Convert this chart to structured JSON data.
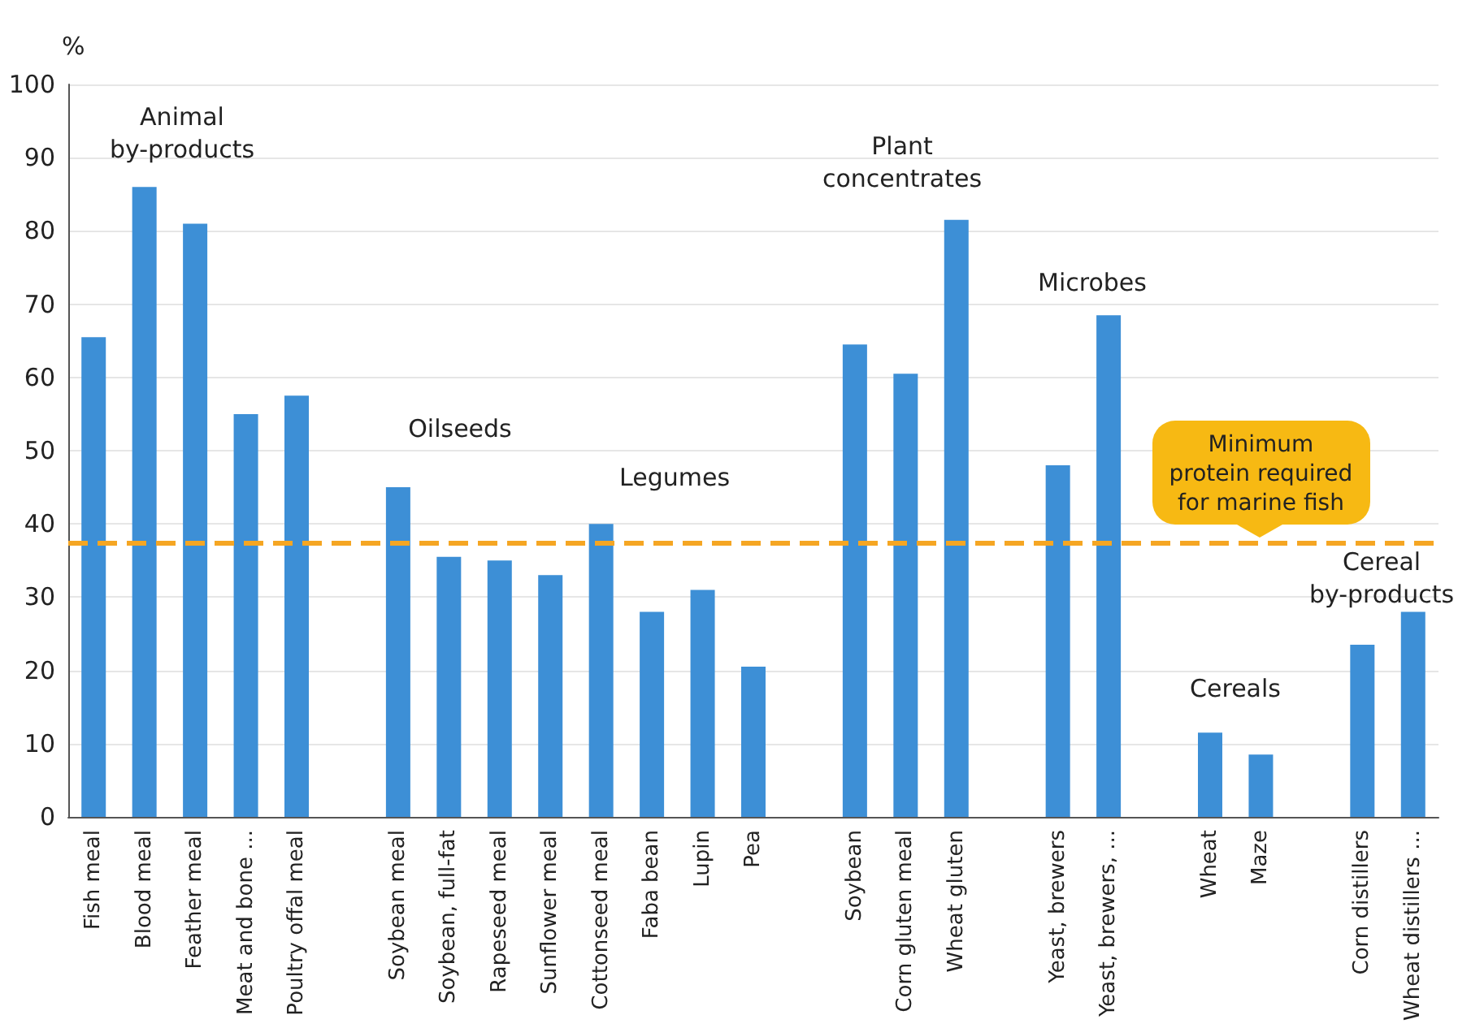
{
  "chart_data": {
    "type": "bar",
    "ylabel": "%",
    "categories": [
      "Fish meal",
      "Blood meal",
      "Feather meal",
      "Meat and bone ...",
      "Poultry offal meal",
      null,
      "Soybean meal",
      "Soybean, full-fat",
      "Rapeseed meal",
      "Sunflower meal",
      "Cottonseed meal",
      "Faba bean",
      "Lupin",
      "Pea",
      null,
      "Soybean",
      "Corn gluten meal",
      "Wheat gluten",
      null,
      "Yeast, brewers",
      "Yeast, brewers, ...",
      null,
      "Wheat",
      "Maze",
      null,
      "Corn distillers",
      "Wheat distillers ..."
    ],
    "series": [
      {
        "color": "#3d8fd6",
        "values": [
          65.5,
          86,
          81,
          55,
          57.5,
          null,
          45,
          35.5,
          35,
          33,
          40,
          28,
          31,
          20.5,
          null,
          64.5,
          60.5,
          81.5,
          null,
          48,
          68.5,
          null,
          11.5,
          8.5,
          null,
          23.5,
          28
        ]
      }
    ],
    "ylim": [
      0,
      100
    ],
    "yticks": [
      0,
      10,
      20,
      30,
      40,
      50,
      60,
      70,
      80,
      90,
      100
    ],
    "grid": "y",
    "ref_lines": [
      {
        "axis": "y",
        "value": 37.5,
        "label": "Minimum protein required for marine fish",
        "color": "#f5a623",
        "line_style": "dashed"
      }
    ],
    "annotations": [
      "Animal\nby-products",
      "Oilseeds",
      "Legumes",
      "Plant\nconcentrates",
      "Microbes",
      "Cereals",
      "Cereal\nby-products"
    ]
  }
}
